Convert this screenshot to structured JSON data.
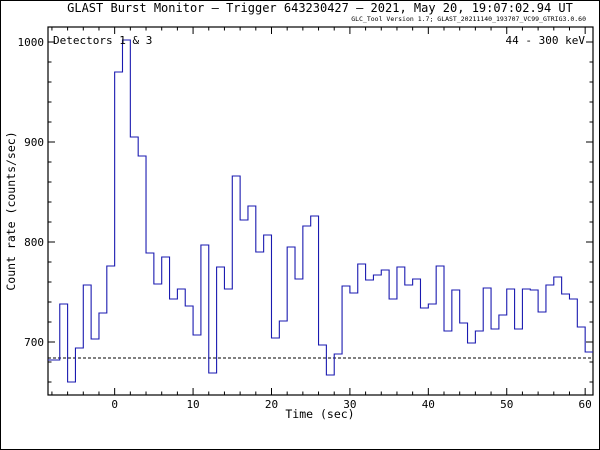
{
  "chart_data": {
    "type": "line",
    "step": true,
    "title": "GLAST Burst Monitor  –  Trigger 643230427  –  2021, May 20, 19:07:02.94 UT",
    "subtitle": "GLC_Tool Version 1.7; GLAST_20211140_193707_VC99_GTRIG3.0.60",
    "xlabel": "Time (sec)",
    "ylabel": "Count rate (counts/sec)",
    "xlim": [
      -8.5,
      61
    ],
    "ylim": [
      647,
      1015
    ],
    "xticks": [
      0,
      10,
      20,
      30,
      40,
      50,
      60
    ],
    "yticks": [
      700,
      800,
      900,
      1000
    ],
    "detectors_label": "Detectors 1 & 3",
    "energy_label": "44 - 300 keV",
    "background_level": 684,
    "line_color": "#1a1ab0",
    "series": [
      {
        "bin_width": 1,
        "x_start": [
          -9,
          -8,
          -7,
          -6,
          -5,
          -4,
          -3,
          -2,
          -1,
          0,
          1,
          2,
          3,
          4,
          5,
          6,
          7,
          8,
          9,
          10,
          11,
          12,
          13,
          14,
          15,
          16,
          17,
          18,
          19,
          20,
          21,
          22,
          23,
          24,
          25,
          26,
          27,
          28,
          29,
          30,
          31,
          32,
          33,
          34,
          35,
          36,
          37,
          38,
          39,
          40,
          41,
          42,
          43,
          44,
          45,
          46,
          47,
          48,
          49,
          50,
          51,
          52,
          53,
          54,
          55,
          56,
          57,
          58,
          59,
          60
        ],
        "values": [
          682,
          682,
          738,
          660,
          694,
          757,
          703,
          729,
          776,
          970,
          1002,
          905,
          886,
          789,
          758,
          785,
          743,
          753,
          736,
          707,
          797,
          669,
          775,
          753,
          866,
          822,
          836,
          790,
          807,
          704,
          721,
          795,
          763,
          816,
          826,
          697,
          667,
          688,
          756,
          749,
          778,
          762,
          767,
          772,
          743,
          775,
          757,
          763,
          734,
          738,
          776,
          711,
          752,
          719,
          699,
          711,
          754,
          713,
          727,
          753,
          713,
          753,
          752,
          730,
          757,
          765,
          748,
          743,
          715,
          690
        ]
      }
    ]
  }
}
